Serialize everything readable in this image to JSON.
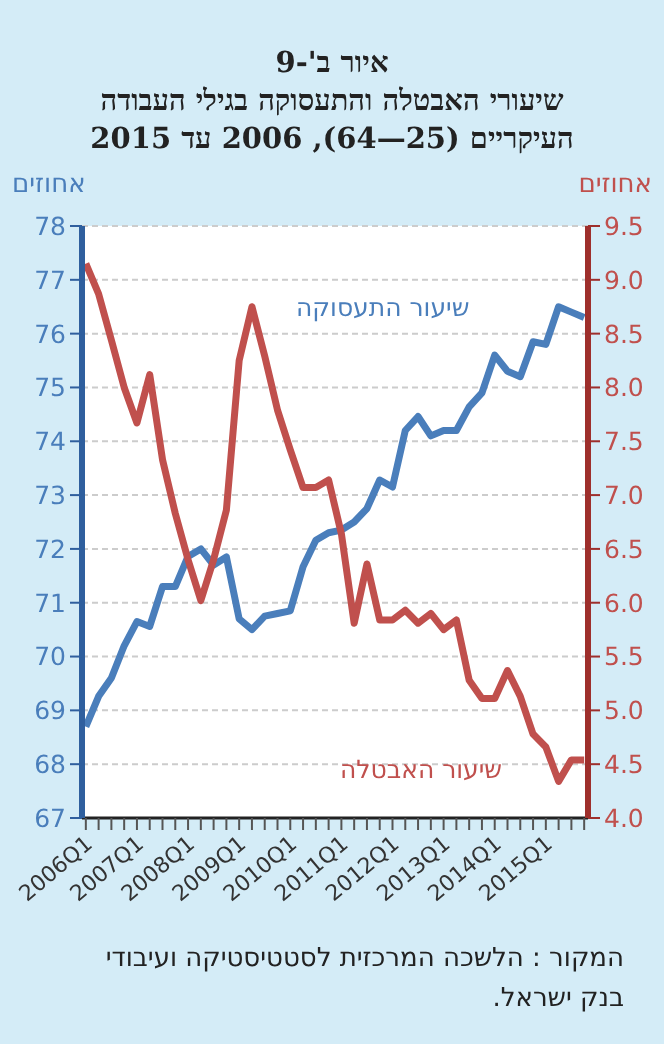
{
  "chart_data": {
    "type": "line",
    "title": "איור ב'-9",
    "subtitle": "שיעורי האבטלה והתעסוקה בגילי העבודה העיקריים (25—64), 2006 עד 2015",
    "ylabel": "אחוזים",
    "y2label": "אחוזים",
    "categories": [
      "2006Q1",
      null,
      null,
      null,
      "2007Q1",
      null,
      null,
      null,
      "2008Q1",
      null,
      null,
      null,
      "2009Q1",
      null,
      null,
      null,
      "2010Q1",
      null,
      null,
      null,
      "2011Q1",
      null,
      null,
      null,
      "2012Q1",
      null,
      null,
      null,
      "2013Q1",
      null,
      null,
      null,
      "2014Q1",
      null,
      null,
      null,
      "2015Q1",
      null,
      null,
      null
    ],
    "series": [
      {
        "name": "שיעור התעסוקה",
        "color": "#4a7ebb",
        "values": [
          68.7,
          69.26,
          69.6,
          70.2,
          70.65,
          70.56,
          71.3,
          71.3,
          71.86,
          72.0,
          71.7,
          71.85,
          70.7,
          70.5,
          70.75,
          70.8,
          70.85,
          71.67,
          72.16,
          72.3,
          72.35,
          72.5,
          72.75,
          73.28,
          73.15,
          74.2,
          74.46,
          74.1,
          74.2,
          74.2,
          74.64,
          74.9,
          75.6,
          75.3,
          75.2,
          75.85,
          75.8,
          76.5,
          76.4,
          76.3
        ]
      },
      {
        "name": "שיעור האבטלה",
        "color": "#c0504d",
        "axis": "y2",
        "values": [
          9.15,
          8.87,
          8.44,
          8.0,
          7.67,
          8.12,
          7.33,
          6.83,
          6.4,
          6.02,
          6.4,
          6.86,
          8.25,
          8.75,
          8.29,
          7.79,
          7.42,
          7.07,
          7.07,
          7.14,
          6.64,
          5.81,
          6.36,
          5.84,
          5.84,
          5.93,
          5.81,
          5.9,
          5.75,
          5.84,
          5.28,
          5.11,
          5.11,
          5.37,
          5.13,
          4.78,
          4.66,
          4.34,
          4.54,
          4.54
        ]
      }
    ],
    "ylim": [
      67,
      78
    ],
    "yticks": [
      67,
      68,
      69,
      70,
      71,
      72,
      73,
      74,
      75,
      76,
      77,
      78
    ],
    "y2lim": [
      4,
      9.5
    ],
    "y2ticks": [
      {
        "value": 4,
        "label": "4.0"
      },
      4.5,
      {
        "value": 5,
        "label": "5.0"
      },
      5.5,
      {
        "value": 6,
        "label": "6.0"
      },
      6.5,
      {
        "value": 7,
        "label": "7.0"
      },
      7.5,
      {
        "value": 8,
        "label": "8.0"
      },
      8.5,
      {
        "value": 9,
        "label": "9.0"
      },
      9.5
    ],
    "grid": "y",
    "marker": "none",
    "line_style": "solid",
    "annotations": [
      "המקור : הלשכה המרכזית לסטטיסטיקה ועיבודי בנק ישראל."
    ]
  }
}
